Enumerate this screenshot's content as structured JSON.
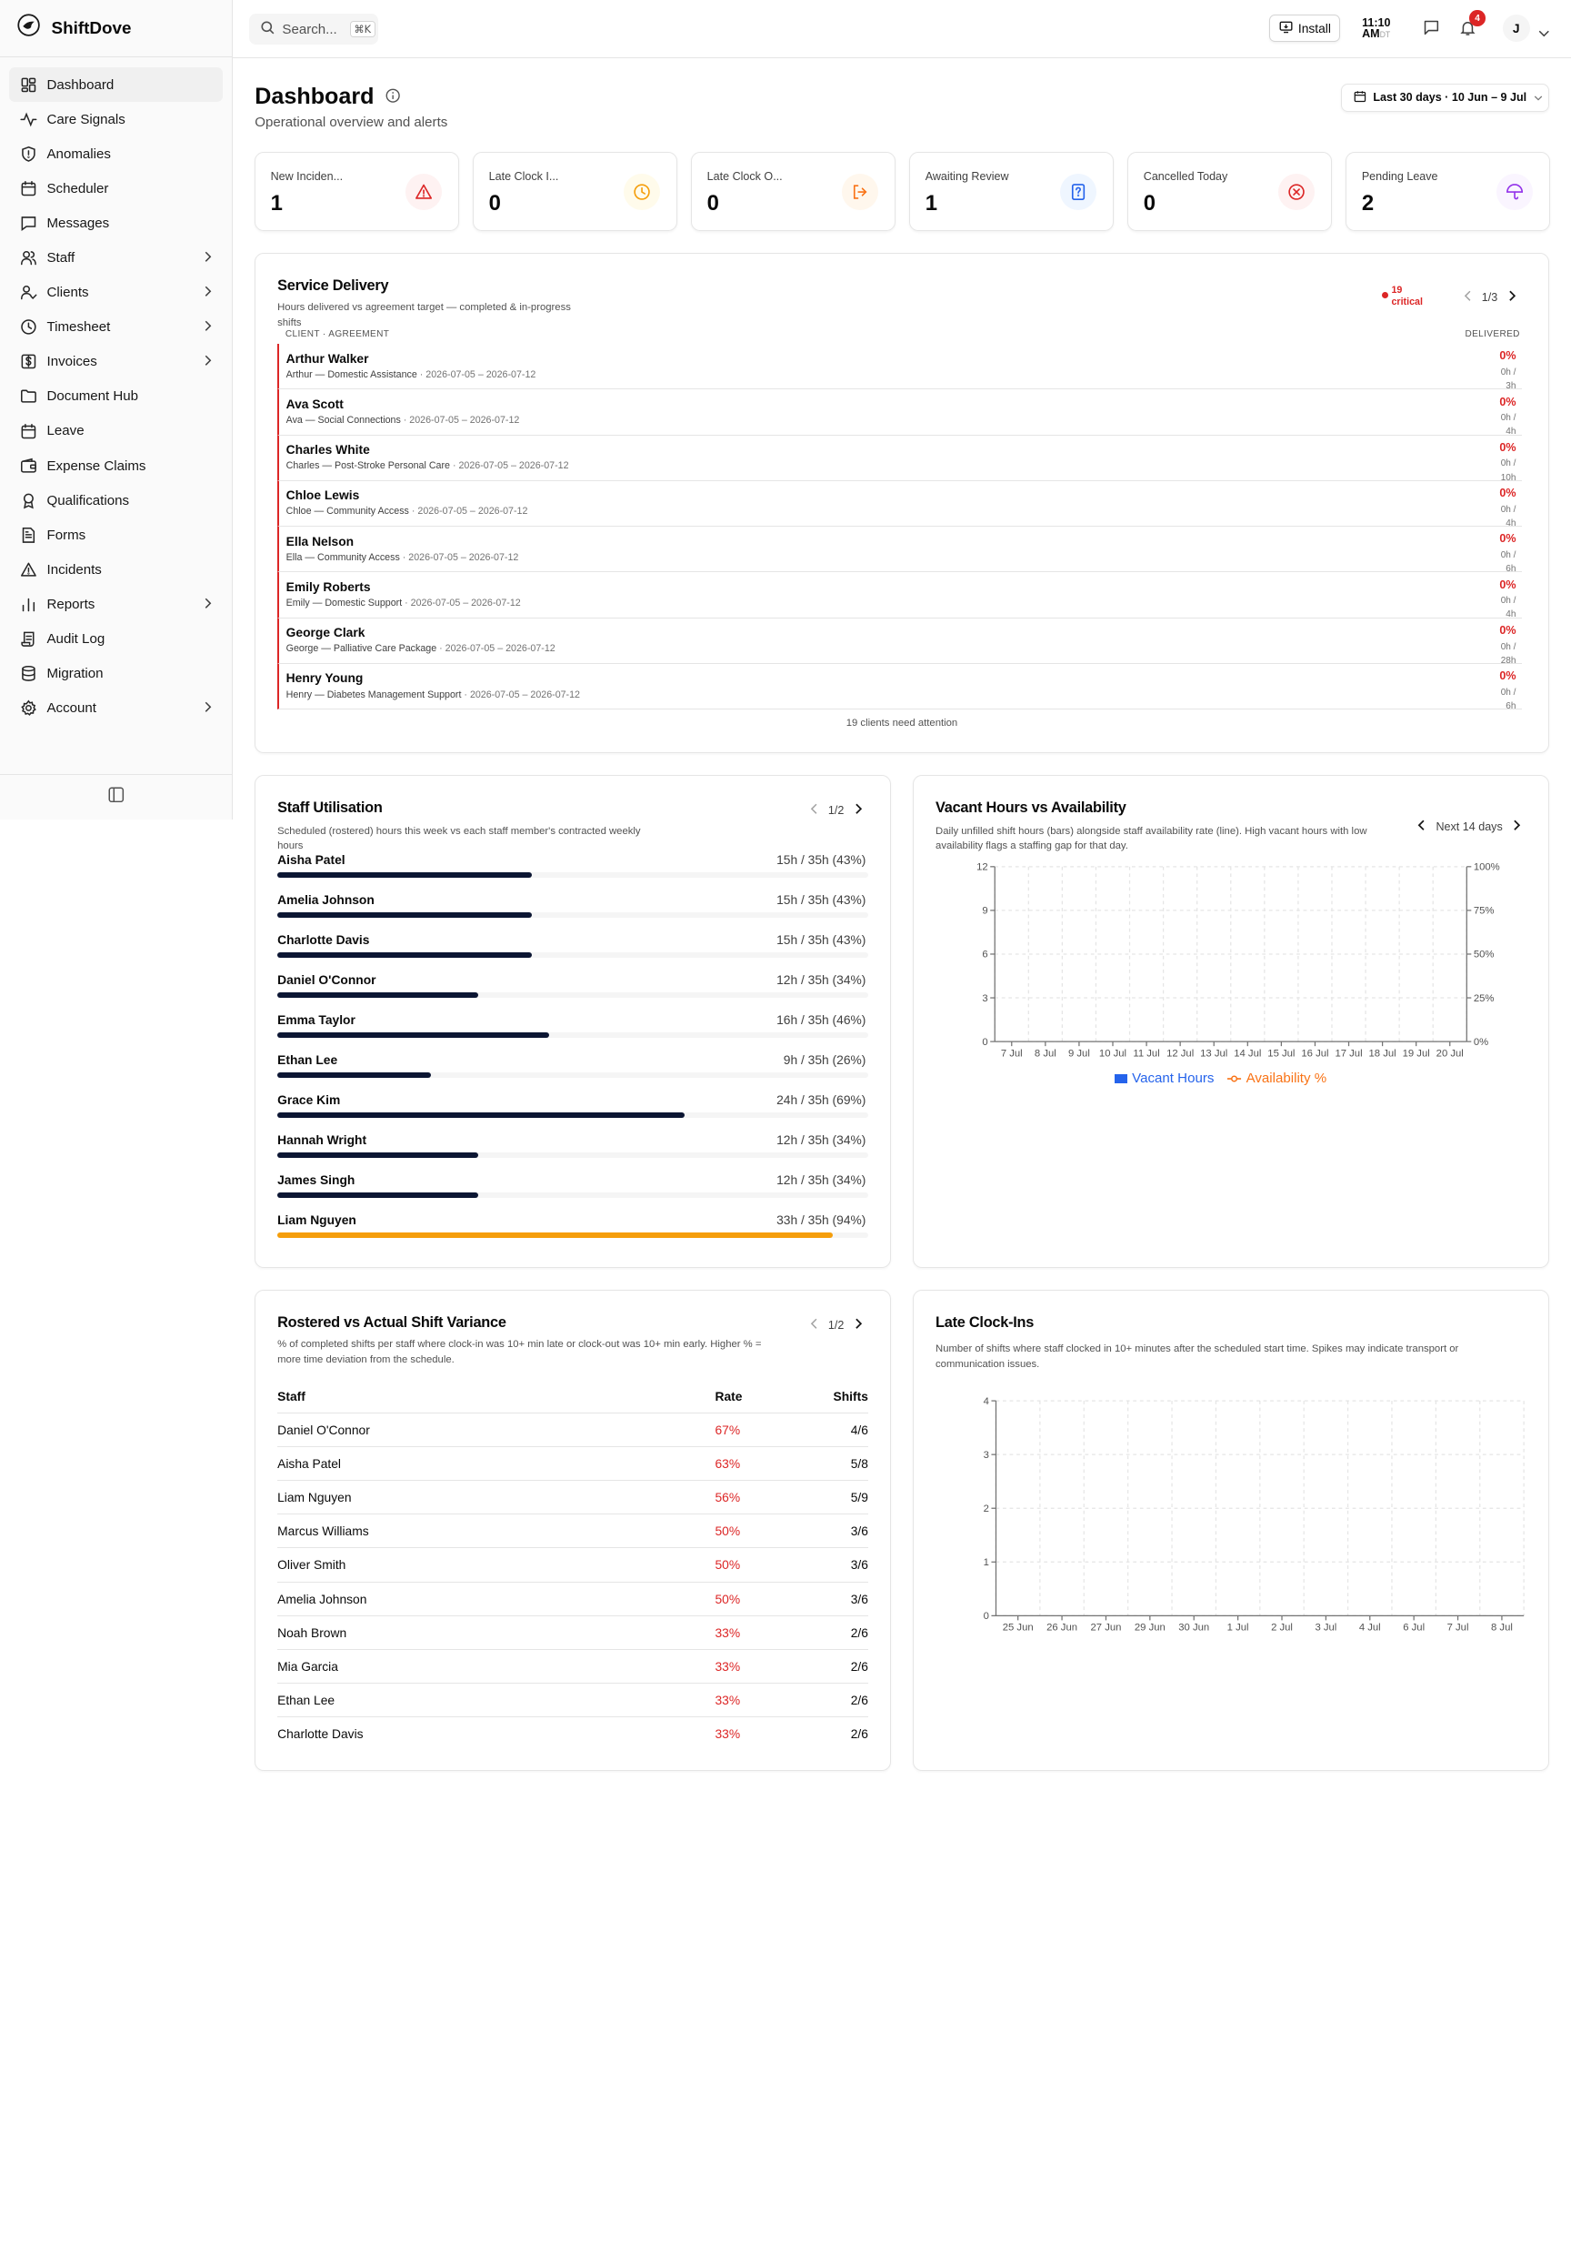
{
  "app": {
    "name": "ShiftDove"
  },
  "sidebar": {
    "items": [
      {
        "label": "Dashboard",
        "icon": "dashboard-icon",
        "active": true,
        "chevron": false
      },
      {
        "label": "Care Signals",
        "icon": "activity-icon",
        "chevron": false
      },
      {
        "label": "Anomalies",
        "icon": "shield-icon",
        "chevron": false
      },
      {
        "label": "Scheduler",
        "icon": "calendar-icon",
        "chevron": false
      },
      {
        "label": "Messages",
        "icon": "message-icon",
        "chevron": false
      },
      {
        "label": "Staff",
        "icon": "users-icon",
        "chevron": true
      },
      {
        "label": "Clients",
        "icon": "user-check-icon",
        "chevron": true
      },
      {
        "label": "Timesheet",
        "icon": "clock-icon",
        "chevron": true
      },
      {
        "label": "Invoices",
        "icon": "dollar-icon",
        "chevron": true
      },
      {
        "label": "Document Hub",
        "icon": "folder-icon",
        "chevron": false
      },
      {
        "label": "Leave",
        "icon": "calendar-icon",
        "chevron": false
      },
      {
        "label": "Expense Claims",
        "icon": "wallet-icon",
        "chevron": false
      },
      {
        "label": "Qualifications",
        "icon": "award-icon",
        "chevron": false
      },
      {
        "label": "Forms",
        "icon": "file-icon",
        "chevron": false
      },
      {
        "label": "Incidents",
        "icon": "alert-triangle-icon",
        "chevron": false
      },
      {
        "label": "Reports",
        "icon": "bar-chart-icon",
        "chevron": true
      },
      {
        "label": "Audit Log",
        "icon": "scroll-icon",
        "chevron": false
      },
      {
        "label": "Migration",
        "icon": "database-icon",
        "chevron": false
      },
      {
        "label": "Account",
        "icon": "gear-icon",
        "chevron": true
      }
    ]
  },
  "topbar": {
    "search_placeholder": "Search...",
    "search_shortcut": "⌘K",
    "install_label": "Install",
    "time": "11:10",
    "ampm": "AM",
    "tz": "DT",
    "notifications_count": "4",
    "avatar_initial": "J"
  },
  "page": {
    "title": "Dashboard",
    "subtitle": "Operational overview and alerts",
    "date_range": "Last 30 days · 10 Jun – 9 Jul"
  },
  "kpis": [
    {
      "label": "New Inciden...",
      "value": "1",
      "icon": "alert-triangle-icon",
      "color": "#dc2626",
      "bg": "#fef2f2"
    },
    {
      "label": "Late Clock I...",
      "value": "0",
      "icon": "clock-icon",
      "color": "#f59e0b",
      "bg": "#fffbeb"
    },
    {
      "label": "Late Clock O...",
      "value": "0",
      "icon": "log-out-icon",
      "color": "#f97316",
      "bg": "#fff7ed"
    },
    {
      "label": "Awaiting Review",
      "value": "1",
      "icon": "file-question-icon",
      "color": "#2563eb",
      "bg": "#eff6ff"
    },
    {
      "label": "Cancelled Today",
      "value": "0",
      "icon": "x-circle-icon",
      "color": "#dc2626",
      "bg": "#fef2f2"
    },
    {
      "label": "Pending Leave",
      "value": "2",
      "icon": "umbrella-icon",
      "color": "#9333ea",
      "bg": "#faf5ff"
    }
  ],
  "service_delivery": {
    "title": "Service Delivery",
    "desc_line1": "Hours delivered vs agreement target — completed & in-progress",
    "desc_line2": "shifts",
    "critical_count": "19",
    "critical_label": "critical",
    "page": "1/3",
    "col_client": "CLIENT · AGREEMENT",
    "col_delivered": "DELIVERED",
    "footer": "19 clients need attention",
    "rows": [
      {
        "name": "Arthur Walker",
        "agreement": "Arthur — Domestic Assistance",
        "dates": "· 2026-07-05 – 2026-07-12",
        "pct": "0%",
        "h1": "0h /",
        "h2": "3h"
      },
      {
        "name": "Ava Scott",
        "agreement": "Ava — Social Connections",
        "dates": "· 2026-07-05 – 2026-07-12",
        "pct": "0%",
        "h1": "0h /",
        "h2": "4h"
      },
      {
        "name": "Charles White",
        "agreement": "Charles — Post-Stroke Personal Care",
        "dates": "· 2026-07-05 – 2026-07-12",
        "pct": "0%",
        "h1": "0h /",
        "h2": "10h"
      },
      {
        "name": "Chloe Lewis",
        "agreement": "Chloe — Community Access",
        "dates": "· 2026-07-05 – 2026-07-12",
        "pct": "0%",
        "h1": "0h /",
        "h2": "4h"
      },
      {
        "name": "Ella Nelson",
        "agreement": "Ella — Community Access",
        "dates": "· 2026-07-05 – 2026-07-12",
        "pct": "0%",
        "h1": "0h /",
        "h2": "6h"
      },
      {
        "name": "Emily Roberts",
        "agreement": "Emily — Domestic Support",
        "dates": "· 2026-07-05 – 2026-07-12",
        "pct": "0%",
        "h1": "0h /",
        "h2": "4h"
      },
      {
        "name": "George Clark",
        "agreement": "George — Palliative Care Package",
        "dates": "· 2026-07-05 – 2026-07-12",
        "pct": "0%",
        "h1": "0h /",
        "h2": "28h"
      },
      {
        "name": "Henry Young",
        "agreement": "Henry — Diabetes Management Support",
        "dates": "· 2026-07-05 – 2026-07-12",
        "pct": "0%",
        "h1": "0h /",
        "h2": "6h"
      }
    ]
  },
  "staff_utilisation": {
    "title": "Staff Utilisation",
    "desc_line1": "Scheduled (rostered) hours this week vs each staff member's contracted weekly",
    "desc_line2": "hours",
    "page": "1/2",
    "over_color": "#f59e0b",
    "rows": [
      {
        "name": "Aisha Patel",
        "value": "15h / 35h (43%)",
        "pct": 43
      },
      {
        "name": "Amelia Johnson",
        "value": "15h / 35h (43%)",
        "pct": 43
      },
      {
        "name": "Charlotte Davis",
        "value": "15h / 35h (43%)",
        "pct": 43
      },
      {
        "name": "Daniel O'Connor",
        "value": "12h / 35h (34%)",
        "pct": 34
      },
      {
        "name": "Emma Taylor",
        "value": "16h / 35h (46%)",
        "pct": 46
      },
      {
        "name": "Ethan Lee",
        "value": "9h / 35h (26%)",
        "pct": 26
      },
      {
        "name": "Grace Kim",
        "value": "24h / 35h (69%)",
        "pct": 69
      },
      {
        "name": "Hannah Wright",
        "value": "12h / 35h (34%)",
        "pct": 34
      },
      {
        "name": "James Singh",
        "value": "12h / 35h (34%)",
        "pct": 34
      },
      {
        "name": "Liam Nguyen",
        "value": "33h / 35h (94%)",
        "pct": 94,
        "over": true
      }
    ]
  },
  "vacant_hours": {
    "title": "Vacant Hours vs Availability",
    "desc_line1": "Daily unfilled shift hours (bars) alongside staff availability rate (line). High vacant hours with low",
    "desc_line2": "availability flags a staffing gap for that day.",
    "range_label": "Next 14 days",
    "legend_bar": "Vacant Hours",
    "legend_line": "Availability %",
    "bar_color": "#2563eb",
    "line_color": "#f97316"
  },
  "variance": {
    "title": "Rostered vs Actual Shift Variance",
    "desc_line1": "% of completed shifts per staff where clock-in was 10+ min late or clock-out was 10+ min early. Higher % =",
    "desc_line2": "more time deviation from the schedule.",
    "page": "1/2",
    "col_staff": "Staff",
    "col_rate": "Rate",
    "col_shifts": "Shifts",
    "rate_color": "#dc2626",
    "rows": [
      {
        "name": "Daniel O'Connor",
        "rate": "67%",
        "shifts": "4/6"
      },
      {
        "name": "Aisha Patel",
        "rate": "63%",
        "shifts": "5/8"
      },
      {
        "name": "Liam Nguyen",
        "rate": "56%",
        "shifts": "5/9"
      },
      {
        "name": "Marcus Williams",
        "rate": "50%",
        "shifts": "3/6"
      },
      {
        "name": "Oliver Smith",
        "rate": "50%",
        "shifts": "3/6"
      },
      {
        "name": "Amelia Johnson",
        "rate": "50%",
        "shifts": "3/6"
      },
      {
        "name": "Noah Brown",
        "rate": "33%",
        "shifts": "2/6"
      },
      {
        "name": "Mia Garcia",
        "rate": "33%",
        "shifts": "2/6"
      },
      {
        "name": "Ethan Lee",
        "rate": "33%",
        "shifts": "2/6"
      },
      {
        "name": "Charlotte Davis",
        "rate": "33%",
        "shifts": "2/6"
      }
    ]
  },
  "late_clock_ins": {
    "title": "Late Clock-Ins",
    "desc_line1": "Number of shifts where staff clocked in 10+ minutes after the scheduled start time. Spikes may indicate transport or",
    "desc_line2": "communication issues."
  },
  "chart_data": [
    {
      "type": "bar",
      "categories": [
        "7 Jul",
        "8 Jul",
        "9 Jul",
        "10 Jul",
        "11 Jul",
        "12 Jul",
        "13 Jul",
        "14 Jul",
        "15 Jul",
        "16 Jul",
        "17 Jul",
        "18 Jul",
        "19 Jul",
        "20 Jul"
      ],
      "series": [
        {
          "name": "Vacant Hours",
          "values": [
            0,
            0,
            0,
            0,
            0,
            0,
            0,
            0,
            0,
            0,
            0,
            0,
            0,
            0
          ]
        },
        {
          "name": "Availability %",
          "values": [
            null,
            null,
            null,
            null,
            null,
            null,
            null,
            null,
            null,
            null,
            null,
            null,
            null,
            null
          ]
        }
      ],
      "ylim": [
        0,
        12
      ],
      "yticks": [
        "0",
        "3",
        "6",
        "9",
        "12"
      ],
      "y2lim": [
        0,
        100
      ],
      "y2ticks": [
        "0%",
        "25%",
        "50%",
        "75%",
        "100%"
      ],
      "grid": true,
      "legend": "bottom"
    },
    {
      "type": "line",
      "categories": [
        "25 Jun",
        "26 Jun",
        "27 Jun",
        "29 Jun",
        "30 Jun",
        "1 Jul",
        "2 Jul",
        "3 Jul",
        "4 Jul",
        "6 Jul",
        "7 Jul",
        "8 Jul"
      ],
      "values": [
        0,
        0,
        0,
        0,
        0,
        0,
        0,
        0,
        0,
        0,
        0,
        0
      ],
      "ylim": [
        0,
        4
      ],
      "yticks": [
        "0",
        "1",
        "2",
        "3",
        "4"
      ],
      "grid": true
    }
  ]
}
